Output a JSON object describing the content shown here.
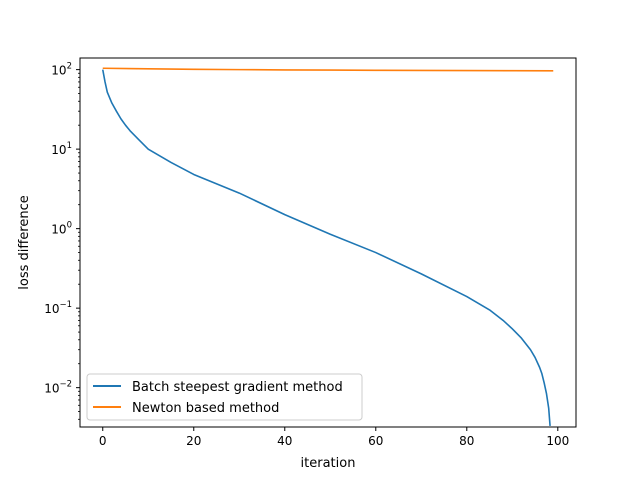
{
  "chart_data": {
    "type": "line",
    "title": "",
    "xlabel": "iteration",
    "ylabel": "loss difference",
    "y_scale": "log",
    "xlim": [
      -5,
      104
    ],
    "ylim": [
      0.0032,
      140
    ],
    "x_ticks": [
      0,
      20,
      40,
      60,
      80,
      100
    ],
    "x_tick_labels": [
      "0",
      "20",
      "40",
      "60",
      "80",
      "100"
    ],
    "y_ticks": [
      0.01,
      0.1,
      1,
      10,
      100
    ],
    "y_tick_labels": [
      {
        "base": "10",
        "exp": "−2"
      },
      {
        "base": "10",
        "exp": "−1"
      },
      {
        "base": "10",
        "exp": "0"
      },
      {
        "base": "10",
        "exp": "1"
      },
      {
        "base": "10",
        "exp": "2"
      }
    ],
    "grid": false,
    "legend_position": "lower-left",
    "series": [
      {
        "name": "Batch steepest gradient method",
        "color": "#1f77b4",
        "x": [
          0,
          0.5,
          1,
          2,
          3,
          4,
          5,
          6,
          8,
          10,
          15,
          20,
          30,
          40,
          50,
          60,
          70,
          80,
          85,
          88,
          90,
          92,
          94,
          95,
          96,
          96.5,
          97,
          97.5,
          98,
          98.3
        ],
        "y": [
          100,
          70,
          52,
          38,
          30,
          24,
          20,
          17,
          13,
          10,
          6.8,
          4.8,
          2.8,
          1.5,
          0.85,
          0.5,
          0.27,
          0.14,
          0.095,
          0.07,
          0.055,
          0.042,
          0.03,
          0.024,
          0.018,
          0.015,
          0.0115,
          0.0085,
          0.0055,
          0.0033
        ]
      },
      {
        "name": "Newton based method",
        "color": "#ff7f0e",
        "x": [
          0,
          10,
          20,
          30,
          40,
          50,
          60,
          70,
          80,
          90,
          99
        ],
        "y": [
          104,
          102.5,
          101,
          100,
          99.2,
          98.6,
          98.1,
          97.7,
          97.3,
          97.0,
          96.7
        ]
      }
    ]
  }
}
